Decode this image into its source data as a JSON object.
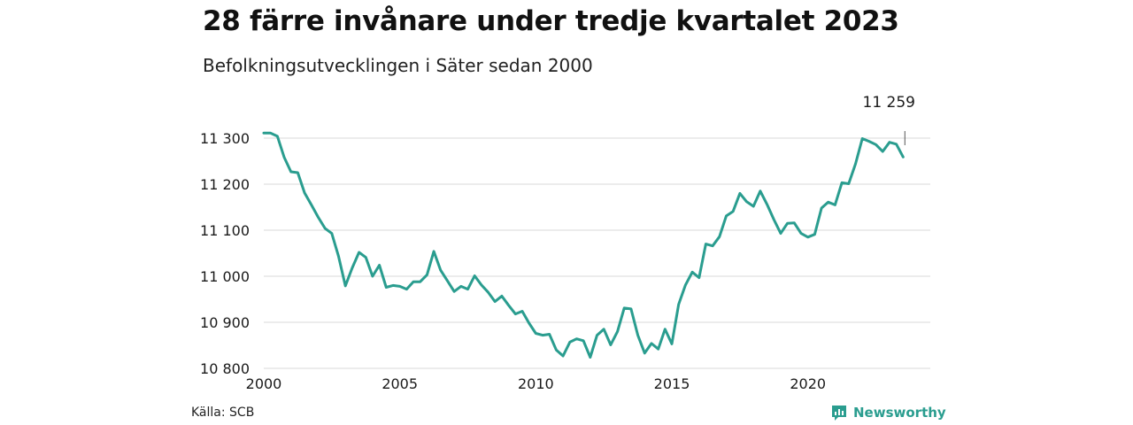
{
  "header": {
    "title": "28 färre invånare under tredje kvartalet 2023",
    "subtitle": "Befolkningsutvecklingen i Säter sedan 2000"
  },
  "footer": {
    "source": "Källa: SCB",
    "brand": "Newsworthy"
  },
  "colors": {
    "line": "#2a9d8f",
    "grid": "#d9d9d9",
    "brand": "#2a9d8f"
  },
  "icons": {
    "brand": "newsworthy-logo-icon"
  },
  "chart_data": {
    "type": "line",
    "title": "",
    "xlabel": "",
    "ylabel": "",
    "xlim": [
      2000,
      2024.5
    ],
    "ylim": [
      10800,
      11300
    ],
    "grid": "horizontal",
    "yticks": [
      10800,
      10900,
      11000,
      11100,
      11200,
      11300
    ],
    "ytick_labels": [
      "10 800",
      "10 900",
      "11 000",
      "11 100",
      "11 200",
      "11 300"
    ],
    "xticks": [
      2000,
      2005,
      2010,
      2015,
      2020
    ],
    "xtick_labels": [
      "2000",
      "2005",
      "2010",
      "2015",
      "2020"
    ],
    "last_value_label": "11 259",
    "series": [
      {
        "values": [
          11311,
          11311,
          11304,
          11258,
          11227,
          11225,
          11181,
          11155,
          11128,
          11104,
          11093,
          11043,
          10979,
          11018,
          11052,
          11041,
          11000,
          11024,
          10976,
          10980,
          10978,
          10972,
          10988,
          10988,
          11003,
          11054,
          11013,
          10990,
          10967,
          10978,
          10972,
          11001,
          10981,
          10965,
          10945,
          10957,
          10937,
          10918,
          10924,
          10898,
          10876,
          10872,
          10874,
          10840,
          10827,
          10857,
          10864,
          10860,
          10824,
          10872,
          10885,
          10851,
          10880,
          10931,
          10929,
          10872,
          10833,
          10854,
          10842,
          10885,
          10853,
          10939,
          10981,
          11009,
          10997,
          11070,
          11066,
          11086,
          11131,
          11141,
          11180,
          11162,
          11152,
          11185,
          11156,
          11123,
          11093,
          11115,
          11116,
          11093,
          11085,
          11091,
          11148,
          11161,
          11155,
          11203,
          11201,
          11244,
          11299,
          11293,
          11286,
          11271,
          11291,
          11287,
          11259
        ]
      }
    ]
  }
}
